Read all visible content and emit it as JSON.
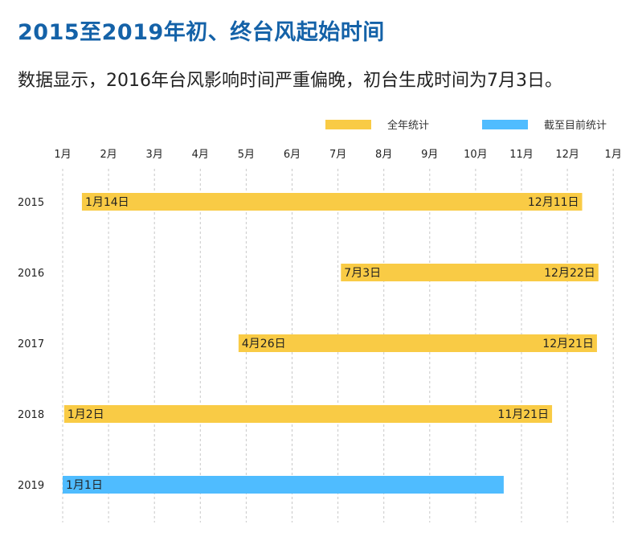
{
  "title": "2015至2019年初、终台风起始时间",
  "subtitle": "数据显示，2016年台风影响时间严重偏晚，初台生成时间为7月3日。",
  "colors": {
    "title": "#1462a8",
    "full_year": "#f9cb45",
    "to_date": "#4fbcff",
    "grid": "#c8c8c8"
  },
  "chart_data": {
    "type": "gantt",
    "title": "2015至2019年初、终台风起始时间",
    "legend": {
      "placement": "top-right",
      "entries": [
        {
          "name": "全年统计",
          "color": "#f9cb45"
        },
        {
          "name": "截至目前统计",
          "color": "#4fbcff"
        }
      ]
    },
    "x_ticks": [
      "1月",
      "2月",
      "3月",
      "4月",
      "5月",
      "6月",
      "7月",
      "8月",
      "9月",
      "10月",
      "11月",
      "12月",
      "1月"
    ],
    "grid": "vertical-dashed",
    "rows": [
      {
        "year": "2015",
        "start": "01-14",
        "end": "12-11",
        "start_label": "1月14日",
        "end_label": "12月11日",
        "series": "全年统计"
      },
      {
        "year": "2016",
        "start": "07-03",
        "end": "12-22",
        "start_label": "7月3日",
        "end_label": "12月22日",
        "series": "全年统计"
      },
      {
        "year": "2017",
        "start": "04-26",
        "end": "12-21",
        "start_label": "4月26日",
        "end_label": "12月21日",
        "series": "全年统计"
      },
      {
        "year": "2018",
        "start": "01-02",
        "end": "11-21",
        "start_label": "1月2日",
        "end_label": "11月21日",
        "series": "全年统计"
      },
      {
        "year": "2019",
        "start": "01-01",
        "end": "10-20",
        "start_label": "1月1日",
        "end_label": "",
        "series": "截至目前统计"
      }
    ]
  }
}
